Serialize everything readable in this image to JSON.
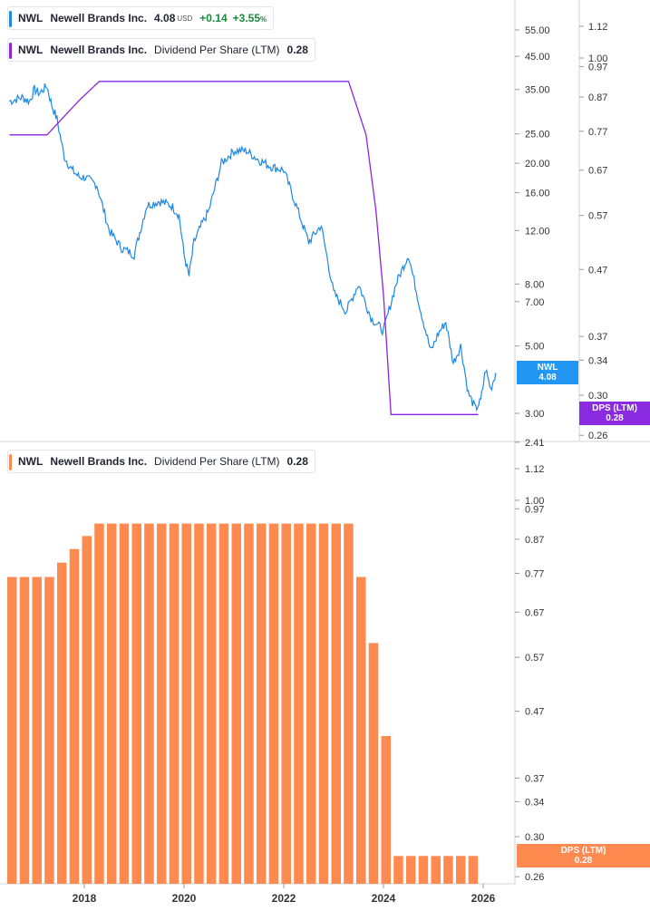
{
  "legend_top": {
    "ticker": "NWL",
    "name": "Newell Brands Inc.",
    "price": "4.08",
    "currency": "USD",
    "change": "+0.14",
    "change_pct": "+3.55",
    "pct_sign": "%"
  },
  "legend_mid": {
    "ticker": "NWL",
    "name": "Newell Brands Inc.",
    "metric": "Dividend Per Share (LTM)",
    "value": "0.28"
  },
  "legend_bottom": {
    "ticker": "NWL",
    "name": "Newell Brands Inc.",
    "metric": "Dividend Per Share (LTM)",
    "value": "0.28"
  },
  "tags": {
    "price_label": "NWL",
    "price_value": "4.08",
    "dps_label": "DPS (LTM)",
    "dps_value": "0.28",
    "dps_bottom_label": "DPS (LTM)",
    "dps_bottom_value": "0.28"
  },
  "colors": {
    "price_line": "#1e88e5",
    "dps_line": "#8e24e0",
    "bars": "#ff8a50",
    "gain": "#1a8a3a"
  },
  "chart_data": [
    {
      "type": "line",
      "panel": "top",
      "scale": "log",
      "series": [
        {
          "name": "NWL",
          "color": "#1e88e5",
          "x": [
            2016.5,
            2016.75,
            2016.9,
            2017.0,
            2017.1,
            2017.25,
            2017.35,
            2017.45,
            2017.6,
            2017.75,
            2017.9,
            2018.0,
            2018.25,
            2018.5,
            2018.75,
            2019.0,
            2019.25,
            2019.5,
            2019.75,
            2019.9,
            2020.0,
            2020.1,
            2020.2,
            2020.35,
            2020.5,
            2020.75,
            2021.0,
            2021.25,
            2021.5,
            2021.75,
            2022.0,
            2022.25,
            2022.5,
            2022.75,
            2023.0,
            2023.25,
            2023.5,
            2023.75,
            2024.0,
            2024.25,
            2024.5,
            2024.75,
            2024.95,
            2025.1,
            2025.25,
            2025.4,
            2025.55,
            2025.7,
            2025.85,
            2025.95,
            2026.05,
            2026.15,
            2026.25
          ],
          "y": [
            32,
            33,
            32,
            35,
            34,
            36,
            31,
            28,
            21,
            19,
            18,
            18,
            17,
            12,
            10.5,
            10,
            14.5,
            15,
            14.5,
            13.5,
            10,
            8.5,
            11,
            12.5,
            14,
            20,
            22,
            22,
            20.5,
            19.5,
            19,
            14.5,
            11,
            12.5,
            7.5,
            6.5,
            8,
            6.2,
            5.6,
            8,
            10,
            6.5,
            4.8,
            5.5,
            6,
            4.4,
            5,
            3.5,
            3.1,
            3.3,
            4.2,
            3.6,
            4.08
          ]
        },
        {
          "name": "DPS (LTM)",
          "color": "#8e24e0",
          "x": [
            2016.5,
            2017.25,
            2017.9,
            2018.3,
            2023.3,
            2023.65,
            2023.85,
            2024.0,
            2024.15,
            2024.25,
            2025.9
          ],
          "y": [
            0.76,
            0.76,
            0.86,
            0.92,
            0.92,
            0.76,
            0.58,
            0.43,
            0.28,
            0.28,
            0.28
          ]
        }
      ],
      "y_ticks": [
        "55.00",
        "45.00",
        "35.00",
        "25.00",
        "20.00",
        "16.00",
        "12.00",
        "8.00",
        "7.00",
        "5.00",
        "3.00",
        "2.41"
      ],
      "y2_ticks": [
        "1.12",
        "1.00",
        "0.97",
        "0.87",
        "0.77",
        "0.67",
        "0.57",
        "0.47",
        "0.37",
        "0.34",
        "0.30",
        "0.26"
      ],
      "ylim": [
        2.41,
        70
      ],
      "y2lim": [
        0.26,
        1.2
      ]
    },
    {
      "type": "bar",
      "panel": "bottom",
      "scale": "log",
      "series": [
        {
          "name": "DPS (LTM)",
          "color": "#ff8a50",
          "x": [
            2016.55,
            2016.8,
            2017.05,
            2017.3,
            2017.55,
            2017.8,
            2018.05,
            2018.3,
            2018.55,
            2018.8,
            2019.05,
            2019.3,
            2019.55,
            2019.8,
            2020.05,
            2020.3,
            2020.55,
            2020.8,
            2021.05,
            2021.3,
            2021.55,
            2021.8,
            2022.05,
            2022.3,
            2022.55,
            2022.8,
            2023.05,
            2023.3,
            2023.55,
            2023.8,
            2024.05,
            2024.3,
            2024.55,
            2024.8,
            2025.05,
            2025.3,
            2025.55,
            2025.8
          ],
          "values": [
            0.76,
            0.76,
            0.76,
            0.76,
            0.8,
            0.84,
            0.88,
            0.92,
            0.92,
            0.92,
            0.92,
            0.92,
            0.92,
            0.92,
            0.92,
            0.92,
            0.92,
            0.92,
            0.92,
            0.92,
            0.92,
            0.92,
            0.92,
            0.92,
            0.92,
            0.92,
            0.92,
            0.92,
            0.76,
            0.6,
            0.43,
            0.28,
            0.28,
            0.28,
            0.28,
            0.28,
            0.28,
            0.28
          ]
        }
      ],
      "y_ticks": [
        "1.12",
        "1.00",
        "0.97",
        "0.87",
        "0.77",
        "0.67",
        "0.57",
        "0.47",
        "0.37",
        "0.34",
        "0.30",
        "0.26"
      ],
      "x_ticks": [
        "2018",
        "2020",
        "2022",
        "2024",
        "2026"
      ],
      "ylim": [
        0.25,
        1.2
      ]
    }
  ]
}
